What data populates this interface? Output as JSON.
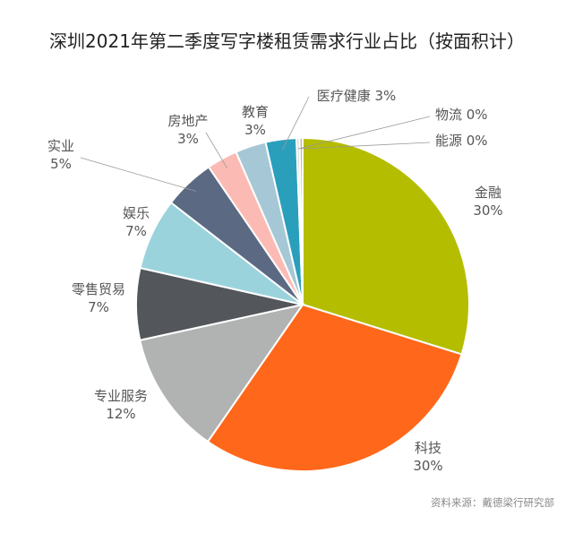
{
  "title": "深圳2021年第二季度写字楼租赁需求行业占比（按面积计）",
  "source": "资料来源：戴德梁行研究部",
  "chart_data": {
    "type": "pie",
    "title": "深圳2021年第二季度写字楼租赁需求行业占比（按面积计）",
    "slices": [
      {
        "name": "金融",
        "value": 30,
        "label": "30%",
        "color": "#b5bd00"
      },
      {
        "name": "科技",
        "value": 30,
        "label": "30%",
        "color": "#ff671b"
      },
      {
        "name": "专业服务",
        "value": 12,
        "label": "12%",
        "color": "#b1b3b3"
      },
      {
        "name": "零售贸易",
        "value": 7,
        "label": "7%",
        "color": "#53565a"
      },
      {
        "name": "娱乐",
        "value": 7,
        "label": "7%",
        "color": "#9bd3dd"
      },
      {
        "name": "实业",
        "value": 5,
        "label": "5%",
        "color": "#5b6a82"
      },
      {
        "name": "房地产",
        "value": 3,
        "label": "3%",
        "color": "#fbbbb4"
      },
      {
        "name": "教育",
        "value": 3,
        "label": "3%",
        "color": "#a6c8d6"
      },
      {
        "name": "医疗健康",
        "value": 3,
        "label": "3%",
        "color": "#2a9fbc"
      },
      {
        "name": "物流",
        "value": 0.3,
        "label": "0%",
        "color": "#d9d9d6"
      },
      {
        "name": "能源",
        "value": 0.3,
        "label": "0%",
        "color": "#c9b88a"
      }
    ]
  }
}
